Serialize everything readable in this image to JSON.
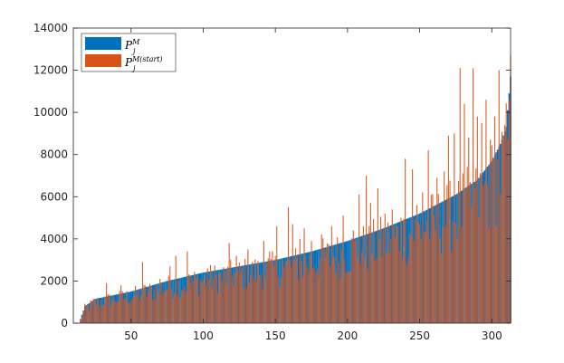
{
  "chart_data": {
    "type": "bar",
    "overlay": true,
    "xlim": [
      10,
      313
    ],
    "ylim": [
      0,
      14000
    ],
    "x_ticks": [
      50,
      100,
      150,
      200,
      250,
      300
    ],
    "y_ticks": [
      0,
      2000,
      4000,
      6000,
      8000,
      10000,
      12000,
      14000
    ],
    "x_tick_labels": [
      "50",
      "100",
      "150",
      "200",
      "250",
      "300"
    ],
    "y_tick_labels": [
      "0",
      "2000",
      "4000",
      "6000",
      "8000",
      "10000",
      "12000",
      "14000"
    ],
    "legend_placement": "top-left",
    "x_start": 15,
    "x_end": 313,
    "series": [
      {
        "key": "P_jM",
        "legend_main": "P",
        "legend_sup": "M",
        "legend_sub": "j",
        "color": "#0072BD",
        "description_shape": "sorted ascending from ~200 to ~11700",
        "anchors": [
          [
            15,
            200
          ],
          [
            18,
            800
          ],
          [
            25,
            1150
          ],
          [
            50,
            1500
          ],
          [
            75,
            2000
          ],
          [
            100,
            2400
          ],
          [
            125,
            2700
          ],
          [
            150,
            3000
          ],
          [
            175,
            3400
          ],
          [
            200,
            3900
          ],
          [
            225,
            4500
          ],
          [
            250,
            5200
          ],
          [
            275,
            6100
          ],
          [
            290,
            6800
          ],
          [
            300,
            7700
          ],
          [
            306,
            8500
          ],
          [
            310,
            9300
          ],
          [
            313,
            11700
          ]
        ]
      },
      {
        "key": "P_jM_start",
        "legend_main": "P",
        "legend_sup": "M(start)",
        "legend_sub": "j",
        "color": "#D95319",
        "description_shape": "noisy around the blue trend with many spikes",
        "spikes": [
          [
            33,
            1900
          ],
          [
            43,
            1800
          ],
          [
            58,
            2900
          ],
          [
            70,
            2100
          ],
          [
            77,
            2700
          ],
          [
            81,
            3200
          ],
          [
            89,
            3400
          ],
          [
            92,
            2200
          ],
          [
            103,
            2600
          ],
          [
            118,
            3800
          ],
          [
            123,
            3200
          ],
          [
            131,
            3500
          ],
          [
            142,
            3900
          ],
          [
            146,
            3400
          ],
          [
            151,
            4600
          ],
          [
            155,
            3000
          ],
          [
            159,
            5500
          ],
          [
            162,
            4700
          ],
          [
            167,
            4000
          ],
          [
            170,
            4500
          ],
          [
            175,
            3900
          ],
          [
            182,
            4200
          ],
          [
            189,
            4600
          ],
          [
            197,
            5100
          ],
          [
            204,
            4400
          ],
          [
            208,
            6100
          ],
          [
            213,
            7000
          ],
          [
            216,
            5700
          ],
          [
            221,
            6400
          ],
          [
            226,
            5200
          ],
          [
            231,
            5400
          ],
          [
            237,
            5000
          ],
          [
            240,
            7800
          ],
          [
            245,
            7300
          ],
          [
            248,
            5600
          ],
          [
            252,
            6200
          ],
          [
            256,
            8200
          ],
          [
            262,
            6900
          ],
          [
            267,
            7200
          ],
          [
            270,
            8900
          ],
          [
            274,
            9000
          ],
          [
            278,
            12100
          ],
          [
            281,
            10400
          ],
          [
            284,
            8800
          ],
          [
            287,
            12100
          ],
          [
            290,
            9800
          ],
          [
            293,
            9500
          ],
          [
            296,
            10600
          ],
          [
            299,
            8700
          ],
          [
            302,
            9800
          ],
          [
            305,
            12000
          ],
          [
            309,
            9400
          ],
          [
            312,
            10600
          ]
        ]
      }
    ]
  }
}
